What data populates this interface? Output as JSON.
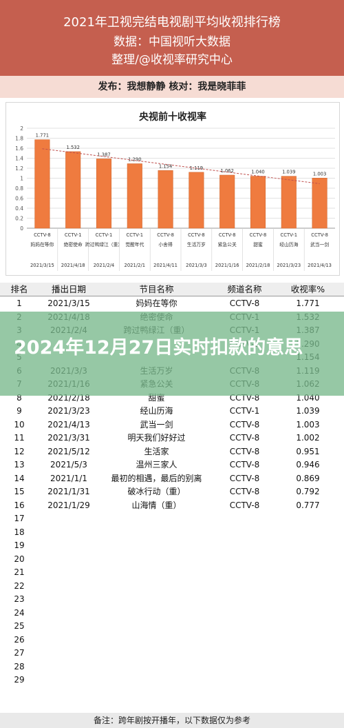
{
  "header": {
    "title": "2021年卫视完结电视剧平均收视排行榜",
    "source": "数据：中国视听大数据",
    "org": "整理/@收视率研究中心"
  },
  "pubbar": {
    "text": "发布：我想静静    核对：我是晓菲菲"
  },
  "chart_data": {
    "type": "bar",
    "title": "央视前十收视率",
    "categories": [
      "妈妈在等你",
      "绝密使命",
      "跨过鸭绿江（重）",
      "觉醒年代",
      "小舍得",
      "生活万岁",
      "紧急公关",
      "甜蜜",
      "经山历海",
      "武当一剑"
    ],
    "channels": [
      "CCTV-8",
      "CCTV-1",
      "CCTV-1",
      "CCTV-1",
      "CCTV-8",
      "CCTV-8",
      "CCTV-8",
      "CCTV-8",
      "CCTV-1",
      "CCTV-8"
    ],
    "dates": [
      "2021/3/15",
      "2021/4/18",
      "2021/2/4",
      "2021/2/1",
      "2021/4/11",
      "2021/3/3",
      "2021/1/16",
      "2021/2/18",
      "2021/3/23",
      "2021/4/13"
    ],
    "values": [
      1.771,
      1.532,
      1.387,
      1.29,
      1.154,
      1.119,
      1.062,
      1.04,
      1.039,
      1.003
    ],
    "value_labels": [
      "1.771",
      "1.532",
      "1.387",
      "1.290",
      "1.154",
      "1.119",
      "1.062",
      "1.040",
      "1.039",
      "1.003"
    ],
    "yticks": [
      "0",
      "0.2",
      "0.4",
      "0.6",
      "0.8",
      "1",
      "1.2",
      "1.4",
      "1.6",
      "1.8",
      "2"
    ],
    "ylim": [
      0,
      2
    ],
    "grid": true,
    "trendline": true,
    "colors": {
      "bar": "#ef7b3f",
      "bar_edge": "#d26a33",
      "trend": "#c0504d"
    }
  },
  "table": {
    "headers": [
      "排名",
      "播出日期",
      "节目名称",
      "频道名称",
      "收视率%"
    ],
    "rows": [
      [
        "1",
        "2021/3/15",
        "妈妈在等你",
        "CCTV-8",
        "1.771"
      ],
      [
        "2",
        "2021/4/18",
        "绝密使命",
        "CCTV-1",
        "1.532"
      ],
      [
        "3",
        "2021/2/4",
        "跨过鸭绿江（重）",
        "CCTV-1",
        "1.387"
      ],
      [
        "4",
        "",
        "",
        "CCTV-1",
        "1.290"
      ],
      [
        "5",
        "",
        "",
        "",
        "1.154"
      ],
      [
        "6",
        "2021/3/3",
        "生活万岁",
        "CCTV-8",
        "1.119"
      ],
      [
        "7",
        "2021/1/16",
        "紧急公关",
        "CCTV-8",
        "1.062"
      ],
      [
        "8",
        "2021/2/18",
        "甜蜜",
        "CCTV-8",
        "1.040"
      ],
      [
        "9",
        "2021/3/23",
        "经山历海",
        "CCTV-1",
        "1.039"
      ],
      [
        "10",
        "2021/4/13",
        "武当一剑",
        "CCTV-8",
        "1.003"
      ],
      [
        "11",
        "2021/3/31",
        "明天我们好好过",
        "CCTV-8",
        "1.002"
      ],
      [
        "12",
        "2021/5/12",
        "生活家",
        "CCTV-8",
        "0.951"
      ],
      [
        "13",
        "2021/5/3",
        "温州三家人",
        "CCTV-8",
        "0.946"
      ],
      [
        "14",
        "2021/1/1",
        "最初的相遇，最后的别离",
        "CCTV-8",
        "0.869"
      ],
      [
        "15",
        "2021/1/31",
        "破冰行动（重）",
        "CCTV-8",
        "0.792"
      ],
      [
        "16",
        "2021/1/29",
        "山海情（重）",
        "CCTV-8",
        "0.777"
      ]
    ],
    "empty_ranks": [
      "17",
      "18",
      "19",
      "20",
      "21",
      "22",
      "23",
      "24",
      "25",
      "26",
      "27",
      "28",
      "29"
    ]
  },
  "overlay": {
    "text": "2024年12月27日实时扣款的意思"
  },
  "footer": {
    "text": "备注：跨年剧按开播年，以下数据仅为参考"
  }
}
